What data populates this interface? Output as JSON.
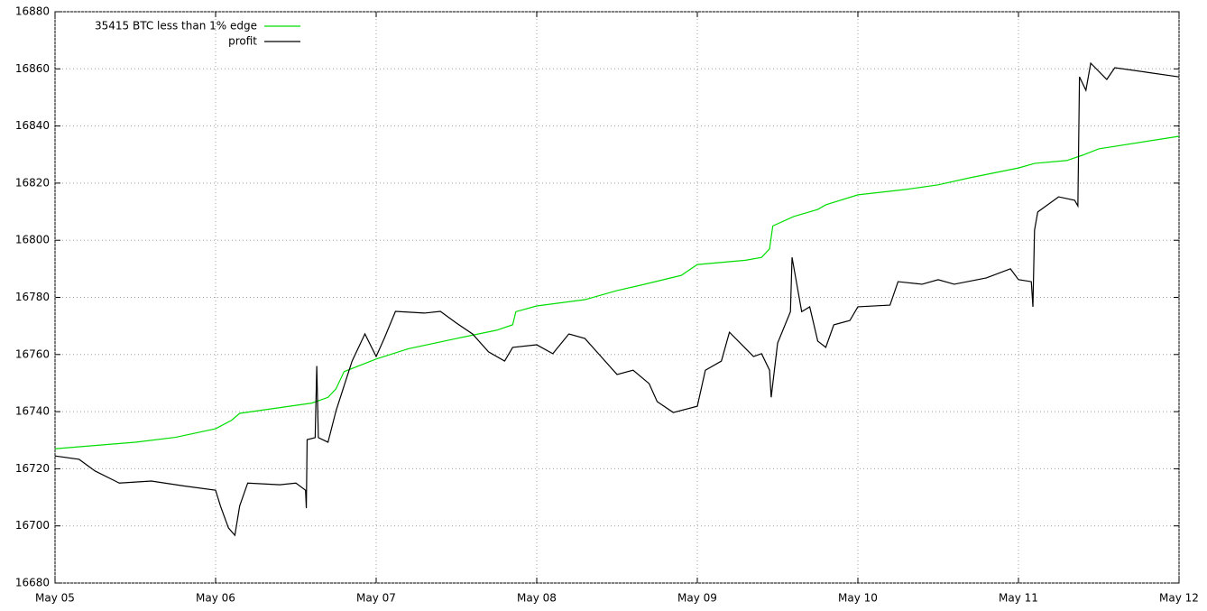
{
  "chart_data": {
    "type": "line",
    "xlim": [
      0,
      7
    ],
    "xticks": [
      {
        "value": 0,
        "label": "May 05"
      },
      {
        "value": 1,
        "label": "May 06"
      },
      {
        "value": 2,
        "label": "May 07"
      },
      {
        "value": 3,
        "label": "May 08"
      },
      {
        "value": 4,
        "label": "May 09"
      },
      {
        "value": 5,
        "label": "May 10"
      },
      {
        "value": 6,
        "label": "May 11"
      },
      {
        "value": 7,
        "label": "May 12"
      }
    ],
    "ylim": [
      16680,
      16880
    ],
    "yticks": [
      16680,
      16700,
      16720,
      16740,
      16760,
      16780,
      16800,
      16820,
      16840,
      16860,
      16880
    ],
    "grid": true,
    "legend": "top-left",
    "series": [
      {
        "name": "35415 BTC less than 1% edge",
        "color": "#00dd00",
        "x": [
          0,
          0.5,
          0.75,
          1.0,
          1.1,
          1.15,
          1.5,
          1.6,
          1.7,
          1.75,
          1.8,
          2.0,
          2.2,
          2.5,
          2.75,
          2.85,
          2.87,
          3.0,
          3.3,
          3.5,
          3.65,
          3.9,
          4.0,
          4.3,
          4.4,
          4.45,
          4.47,
          4.6,
          4.75,
          4.8,
          5.0,
          5.3,
          5.5,
          5.7,
          6.0,
          6.1,
          6.3,
          6.4,
          6.5,
          7.0
        ],
        "values": [
          16727,
          16729.3,
          16731,
          16734,
          16737,
          16739.4,
          16742.2,
          16743,
          16745,
          16748,
          16754,
          16758.4,
          16762,
          16765.6,
          16768.5,
          16770.4,
          16775,
          16777,
          16779.2,
          16782.4,
          16784.3,
          16787.7,
          16791.5,
          16793,
          16794,
          16797,
          16805,
          16808.3,
          16810.8,
          16812.4,
          16815.9,
          16817.8,
          16819.4,
          16821.9,
          16825.3,
          16826.9,
          16827.9,
          16829.8,
          16832,
          16836.4
        ]
      },
      {
        "name": "profit",
        "color": "#000000",
        "x": [
          0,
          0.15,
          0.25,
          0.4,
          0.6,
          0.8,
          1.0,
          1.03,
          1.08,
          1.12,
          1.15,
          1.2,
          1.4,
          1.5,
          1.56,
          1.565,
          1.57,
          1.62,
          1.63,
          1.64,
          1.7,
          1.75,
          1.85,
          1.93,
          2.0,
          2.05,
          2.12,
          2.3,
          2.4,
          2.5,
          2.6,
          2.7,
          2.8,
          2.85,
          3.0,
          3.1,
          3.2,
          3.3,
          3.4,
          3.5,
          3.6,
          3.7,
          3.75,
          3.85,
          4.0,
          4.05,
          4.15,
          4.2,
          4.35,
          4.4,
          4.45,
          4.46,
          4.5,
          4.58,
          4.59,
          4.65,
          4.7,
          4.75,
          4.8,
          4.85,
          4.95,
          5.0,
          5.2,
          5.25,
          5.4,
          5.5,
          5.6,
          5.8,
          5.95,
          6.0,
          6.08,
          6.09,
          6.1,
          6.12,
          6.25,
          6.35,
          6.37,
          6.38,
          6.42,
          6.45,
          6.55,
          6.6,
          6.8,
          7.0
        ],
        "values": [
          16724.5,
          16723.3,
          16719.2,
          16715,
          16715.7,
          16714,
          16712.5,
          16707,
          16699.3,
          16696.7,
          16707,
          16715,
          16714.4,
          16715,
          16712.5,
          16706.2,
          16730.2,
          16730.9,
          16756,
          16730.9,
          16729.3,
          16740.3,
          16757.7,
          16767.2,
          16759.3,
          16765.6,
          16775.1,
          16774.5,
          16775.1,
          16771,
          16767.2,
          16760.9,
          16757.7,
          16762.5,
          16763.4,
          16760.3,
          16767.2,
          16765.6,
          16759.3,
          16753,
          16754.5,
          16749.8,
          16743.5,
          16739.7,
          16741.9,
          16754.5,
          16757.7,
          16767.8,
          16759.3,
          16760.3,
          16754.5,
          16745,
          16764,
          16775,
          16794,
          16775,
          16776.7,
          16764.7,
          16762.5,
          16770.4,
          16771.9,
          16776.7,
          16777.3,
          16785.5,
          16784.6,
          16786.2,
          16784.6,
          16786.8,
          16790,
          16786.2,
          16785.5,
          16776.7,
          16803.5,
          16809.9,
          16815.2,
          16814,
          16812,
          16857.2,
          16852.5,
          16862,
          16856.3,
          16860.4,
          16858.8,
          16857.2
        ]
      }
    ]
  }
}
